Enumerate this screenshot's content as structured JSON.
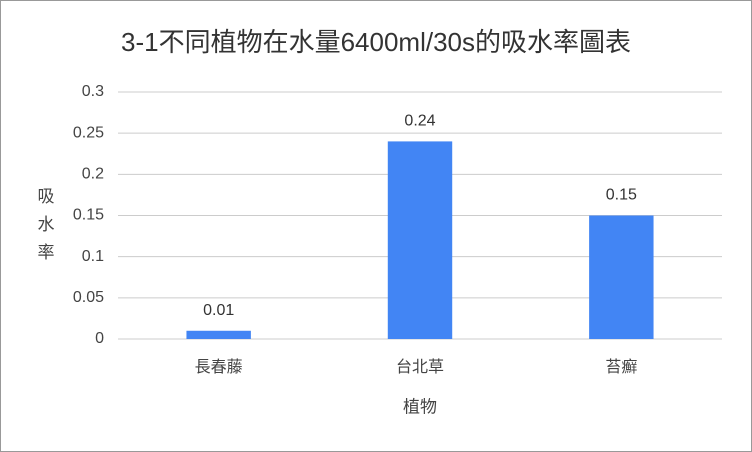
{
  "chart_data": {
    "type": "bar",
    "title": "3-1不同植物在水量6400ml/30s的吸水率圖表",
    "x_label": "植物",
    "y_label": "吸水率",
    "categories": [
      "長春藤",
      "台北草",
      "苔癬"
    ],
    "values": [
      0.01,
      0.24,
      0.15
    ],
    "color": "#4285f4",
    "ylim": [
      0,
      0.3
    ],
    "yticks": [
      0,
      0.05,
      0.1,
      0.15,
      0.2,
      0.25,
      0.3
    ],
    "grid": true
  }
}
